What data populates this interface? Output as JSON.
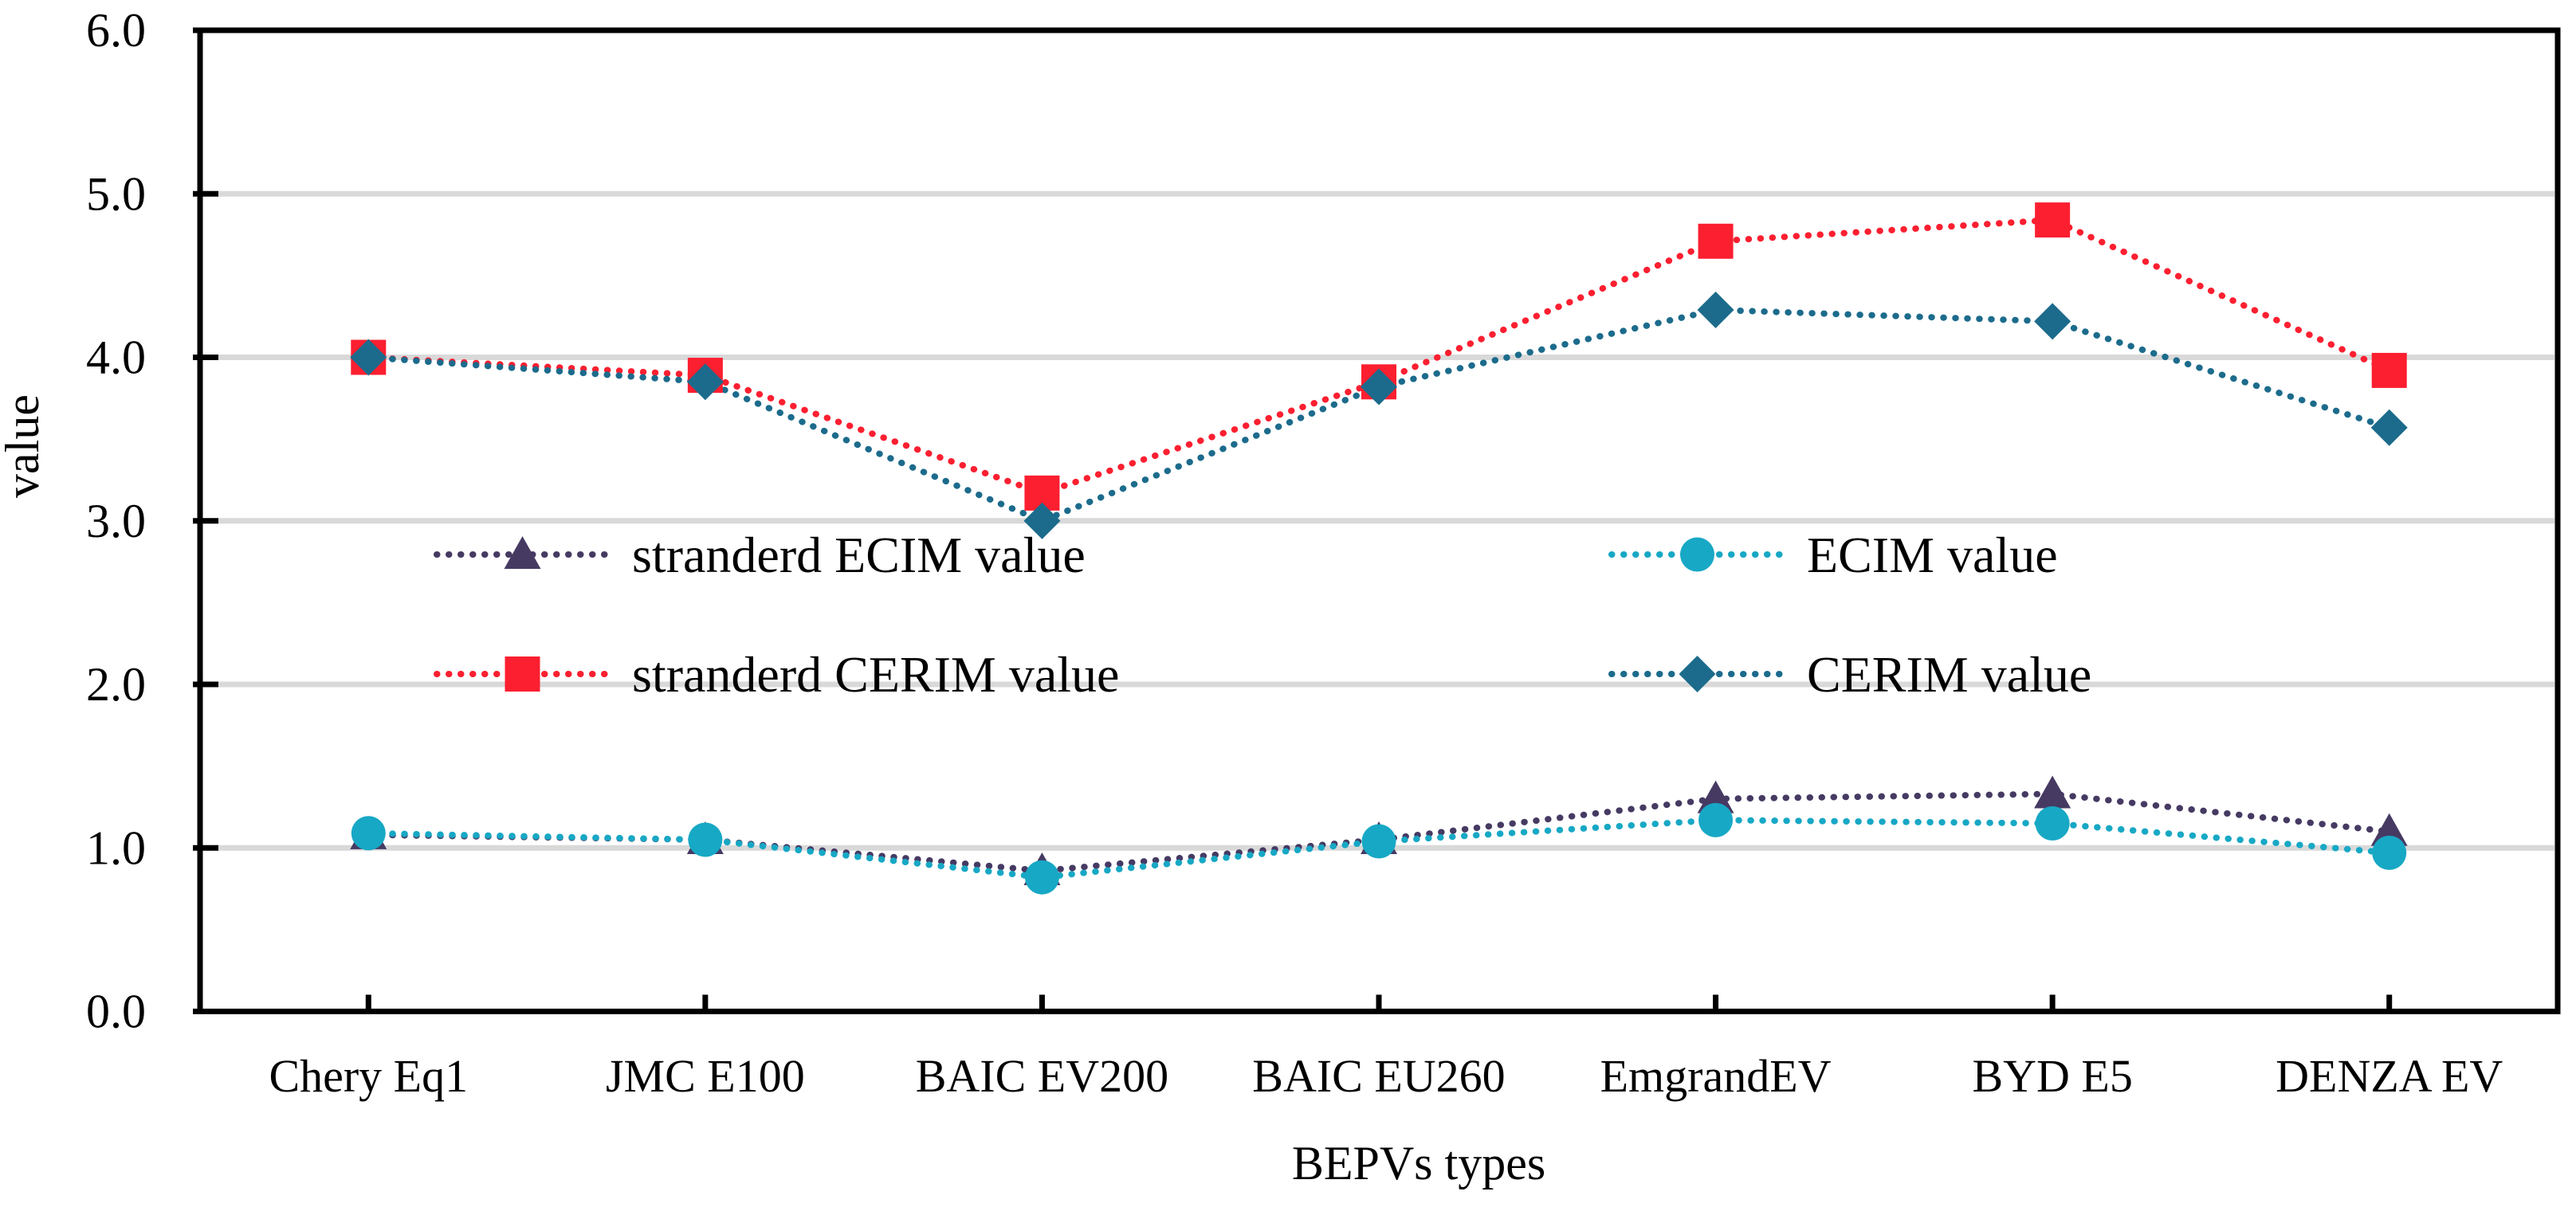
{
  "chart_data": {
    "type": "line",
    "title": "",
    "xlabel": "BEPVs types",
    "ylabel": "value",
    "categories": [
      "Chery Eq1",
      "JMC E100",
      "BAIC EV200",
      "BAIC EU260",
      "EmgrandEV",
      "BYD E5",
      "DENZA EV"
    ],
    "series": [
      {
        "name": "stranderd ECIM value",
        "marker": "triangle",
        "color": "#463A63",
        "values": [
          1.08,
          1.05,
          0.86,
          1.05,
          1.3,
          1.33,
          1.1
        ],
        "legend_col": 0,
        "legend_row": 0
      },
      {
        "name": "stranderd CERIM value",
        "marker": "square",
        "color": "#FB1F30",
        "values": [
          4.0,
          3.89,
          3.17,
          3.85,
          4.71,
          4.84,
          3.92
        ],
        "legend_col": 0,
        "legend_row": 1
      },
      {
        "name": "ECIM value",
        "marker": "circle",
        "color": "#17A8C5",
        "values": [
          1.09,
          1.05,
          0.82,
          1.04,
          1.17,
          1.15,
          0.97
        ],
        "legend_col": 1,
        "legend_row": 0
      },
      {
        "name": "CERIM value",
        "marker": "diamond",
        "color": "#1C6B8C",
        "values": [
          4.0,
          3.85,
          3.0,
          3.82,
          4.29,
          4.22,
          3.57
        ],
        "legend_col": 1,
        "legend_row": 1
      }
    ],
    "ylim": [
      0,
      6
    ],
    "ytick_labels": [
      "0.0",
      "1.0",
      "2.0",
      "3.0",
      "4.0",
      "5.0",
      "6.0"
    ],
    "grid": true,
    "line_style": "dotted",
    "legend_position": "inside-upper-middle-two-columns",
    "colors": {
      "gridline": "#D9D9D9",
      "axis": "#000000",
      "background": "#FFFFFF",
      "text": "#000000"
    }
  }
}
